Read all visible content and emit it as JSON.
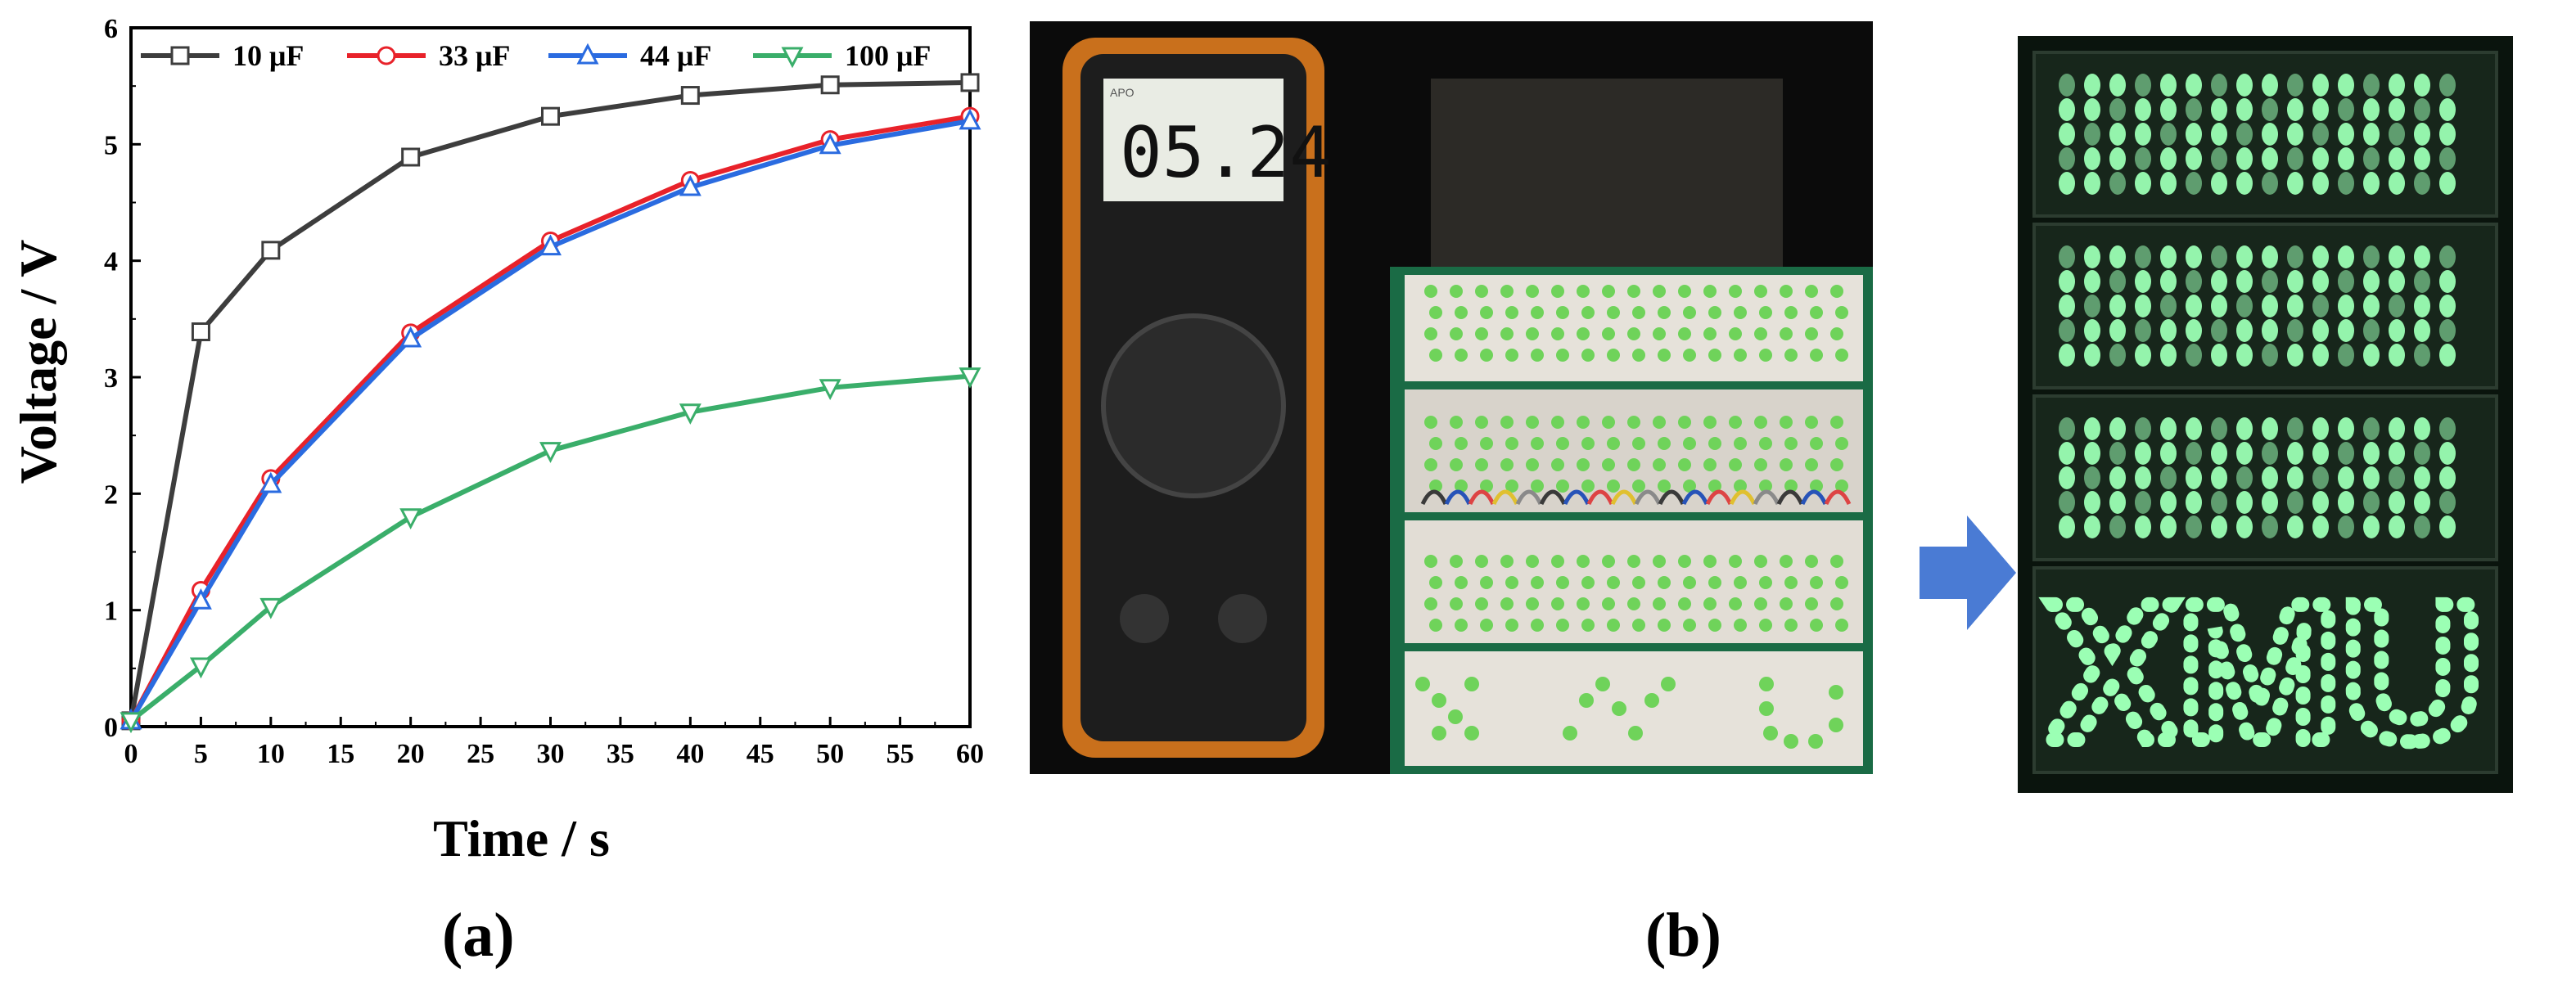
{
  "chart_data": {
    "type": "line",
    "title": "",
    "xlabel": "Time  / s",
    "ylabel": "Voltage / V",
    "xlim": [
      0,
      60
    ],
    "ylim": [
      0,
      6
    ],
    "xticks": [
      0,
      5,
      10,
      15,
      20,
      25,
      30,
      35,
      40,
      45,
      50,
      55,
      60
    ],
    "yticks": [
      0,
      1,
      2,
      3,
      4,
      5,
      6
    ],
    "grid": false,
    "legend_position": "top",
    "series": [
      {
        "name": "10 μF",
        "color": "#3d3d3d",
        "marker": "square",
        "x": [
          0,
          5,
          10,
          20,
          30,
          40,
          50,
          60
        ],
        "y": [
          0.05,
          3.39,
          4.09,
          4.89,
          5.24,
          5.42,
          5.51,
          5.53
        ]
      },
      {
        "name": "33 μF",
        "color": "#e8222a",
        "marker": "circle",
        "x": [
          0,
          5,
          10,
          20,
          30,
          40,
          50,
          60
        ],
        "y": [
          0.05,
          1.17,
          2.13,
          3.38,
          4.17,
          4.69,
          5.04,
          5.24
        ]
      },
      {
        "name": "44 μF",
        "color": "#2a6be0",
        "marker": "triangle-up",
        "x": [
          0,
          5,
          10,
          20,
          30,
          40,
          50,
          60
        ],
        "y": [
          0.05,
          1.08,
          2.08,
          3.33,
          4.12,
          4.63,
          4.99,
          5.2
        ]
      },
      {
        "name": "100 μF",
        "color": "#3aae6a",
        "marker": "triangle-down",
        "x": [
          0,
          5,
          10,
          20,
          30,
          40,
          50,
          60
        ],
        "y": [
          0.05,
          0.52,
          1.03,
          1.8,
          2.37,
          2.7,
          2.91,
          3.01
        ]
      }
    ]
  },
  "panels": {
    "a_label": "(a)",
    "b_label": "(b)"
  },
  "photo": {
    "multimeter_reading": "05.24",
    "led_text": "XMU"
  },
  "colors": {
    "arrow": "#4a7bd4",
    "led": "#9bffb4",
    "photo_bg": "#0b0b0b"
  }
}
